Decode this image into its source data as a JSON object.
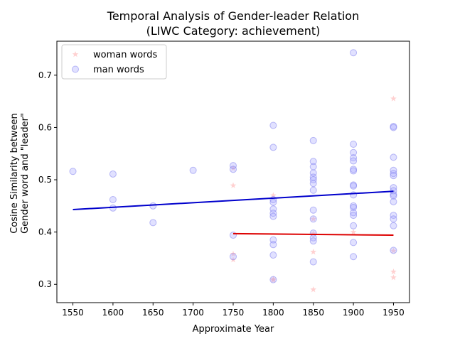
{
  "chart_data": {
    "type": "scatter",
    "title": "Temporal Analysis of Gender-leader Relation",
    "subtitle": "(LIWC Category: achievement)",
    "xlabel": "Approximate Year",
    "ylabel_line1": "Cosine Similarity between",
    "ylabel_line2": "Gender word and \"leader\"",
    "xlim": [
      1530,
      1970
    ],
    "ylim": [
      0.265,
      0.765
    ],
    "xticks": [
      1550,
      1600,
      1650,
      1700,
      1750,
      1800,
      1850,
      1900,
      1950
    ],
    "xtick_labels": [
      "1550",
      "1600",
      "1650",
      "1700",
      "1750",
      "1800",
      "1850",
      "1900",
      "1950"
    ],
    "yticks": [
      0.3,
      0.4,
      0.5,
      0.6,
      0.7
    ],
    "ytick_labels": [
      "0.3",
      "0.4",
      "0.5",
      "0.6",
      "0.7"
    ],
    "legend_position": "upper-left",
    "series": [
      {
        "name": "woman words",
        "marker": "star",
        "color": "#ff9999",
        "points": [
          [
            1750,
            0.522
          ],
          [
            1750,
            0.489
          ],
          [
            1750,
            0.358
          ],
          [
            1750,
            0.347
          ],
          [
            1800,
            0.47
          ],
          [
            1800,
            0.308
          ],
          [
            1800,
            0.31
          ],
          [
            1850,
            0.425
          ],
          [
            1850,
            0.397
          ],
          [
            1850,
            0.362
          ],
          [
            1850,
            0.29
          ],
          [
            1900,
            0.4
          ],
          [
            1950,
            0.655
          ],
          [
            1950,
            0.364
          ],
          [
            1950,
            0.324
          ],
          [
            1950,
            0.313
          ]
        ],
        "trend": {
          "x": [
            1750,
            1950
          ],
          "y": [
            0.397,
            0.394
          ],
          "color": "#dd0000"
        }
      },
      {
        "name": "man words",
        "marker": "circle",
        "color": "#aaaaff",
        "points": [
          [
            1550,
            0.516
          ],
          [
            1600,
            0.511
          ],
          [
            1600,
            0.462
          ],
          [
            1600,
            0.446
          ],
          [
            1650,
            0.45
          ],
          [
            1650,
            0.418
          ],
          [
            1700,
            0.518
          ],
          [
            1750,
            0.527
          ],
          [
            1750,
            0.52
          ],
          [
            1750,
            0.394
          ],
          [
            1750,
            0.353
          ],
          [
            1800,
            0.604
          ],
          [
            1800,
            0.562
          ],
          [
            1800,
            0.462
          ],
          [
            1800,
            0.457
          ],
          [
            1800,
            0.444
          ],
          [
            1800,
            0.436
          ],
          [
            1800,
            0.43
          ],
          [
            1800,
            0.385
          ],
          [
            1800,
            0.376
          ],
          [
            1800,
            0.356
          ],
          [
            1800,
            0.309
          ],
          [
            1850,
            0.575
          ],
          [
            1850,
            0.535
          ],
          [
            1850,
            0.525
          ],
          [
            1850,
            0.513
          ],
          [
            1850,
            0.505
          ],
          [
            1850,
            0.5
          ],
          [
            1850,
            0.493
          ],
          [
            1850,
            0.48
          ],
          [
            1850,
            0.442
          ],
          [
            1850,
            0.425
          ],
          [
            1850,
            0.398
          ],
          [
            1850,
            0.389
          ],
          [
            1850,
            0.383
          ],
          [
            1850,
            0.343
          ],
          [
            1900,
            0.743
          ],
          [
            1900,
            0.568
          ],
          [
            1900,
            0.552
          ],
          [
            1900,
            0.542
          ],
          [
            1900,
            0.536
          ],
          [
            1900,
            0.52
          ],
          [
            1900,
            0.517
          ],
          [
            1900,
            0.49
          ],
          [
            1900,
            0.488
          ],
          [
            1900,
            0.471
          ],
          [
            1900,
            0.45
          ],
          [
            1900,
            0.447
          ],
          [
            1900,
            0.437
          ],
          [
            1900,
            0.432
          ],
          [
            1900,
            0.412
          ],
          [
            1900,
            0.38
          ],
          [
            1900,
            0.353
          ],
          [
            1950,
            0.602
          ],
          [
            1950,
            0.6
          ],
          [
            1950,
            0.543
          ],
          [
            1950,
            0.518
          ],
          [
            1950,
            0.512
          ],
          [
            1950,
            0.508
          ],
          [
            1950,
            0.485
          ],
          [
            1950,
            0.479
          ],
          [
            1950,
            0.472
          ],
          [
            1950,
            0.469
          ],
          [
            1950,
            0.458
          ],
          [
            1950,
            0.432
          ],
          [
            1950,
            0.425
          ],
          [
            1950,
            0.412
          ],
          [
            1950,
            0.365
          ]
        ],
        "trend": {
          "x": [
            1550,
            1950
          ],
          "y": [
            0.443,
            0.478
          ],
          "color": "#0000cc"
        }
      }
    ]
  }
}
